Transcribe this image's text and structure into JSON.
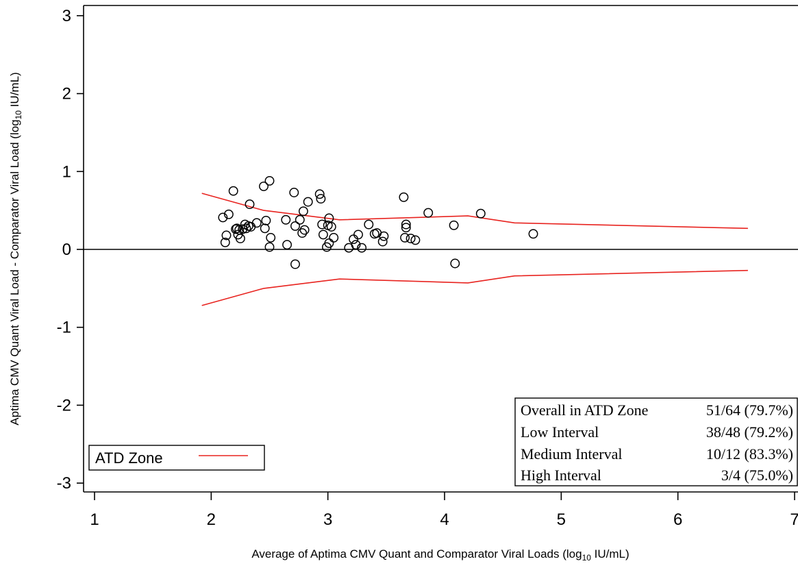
{
  "chart_data": {
    "type": "scatter",
    "xlabel_main": "Average of Aptima CMV Quant and Comparator Viral Loads (log",
    "xlabel_sub": "10",
    "xlabel_end": " IU/mL)",
    "ylabel_main": "Aptima CMV Quant Viral Load - Comparator Viral Load (log",
    "ylabel_sub": "10",
    "ylabel_end": " IU/mL)",
    "xlim": [
      1,
      7
    ],
    "ylim": [
      -3,
      3
    ],
    "x_ticks": [
      "1",
      "2",
      "3",
      "4",
      "5",
      "6",
      "7"
    ],
    "y_ticks": [
      "3",
      "2",
      "1",
      "0",
      "-1",
      "-2",
      "-3"
    ],
    "reference_line_y": 0,
    "colors": {
      "atd_zone": "#e8231f",
      "points": "#000000",
      "axis": "#000000"
    },
    "series": [
      {
        "marker": "open-circle",
        "x": [
          2.1,
          2.12,
          2.13,
          2.15,
          2.19,
          2.21,
          2.22,
          2.23,
          2.24,
          2.25,
          2.27,
          2.29,
          2.3,
          2.32,
          2.33,
          2.34,
          2.39,
          2.45,
          2.46,
          2.47,
          2.5,
          2.5,
          2.51,
          2.64,
          2.65,
          2.71,
          2.72,
          2.72,
          2.76,
          2.78,
          2.79,
          2.8,
          2.83,
          2.93,
          2.94,
          2.95,
          2.96,
          2.99,
          3.0,
          3.01,
          3.01,
          3.03,
          3.05,
          3.18,
          3.22,
          3.24,
          3.26,
          3.29,
          3.35,
          3.4,
          3.42,
          3.47,
          3.48,
          3.65,
          3.66,
          3.67,
          3.67,
          3.71,
          3.75,
          3.86,
          4.08,
          4.09,
          4.31,
          4.76
        ],
        "y": [
          0.41,
          0.09,
          0.18,
          0.45,
          0.75,
          0.26,
          0.27,
          0.19,
          0.25,
          0.14,
          0.26,
          0.32,
          0.27,
          0.3,
          0.58,
          0.29,
          0.34,
          0.81,
          0.27,
          0.37,
          0.88,
          0.03,
          0.15,
          0.38,
          0.06,
          0.73,
          -0.19,
          0.3,
          0.38,
          0.21,
          0.49,
          0.25,
          0.61,
          0.71,
          0.65,
          0.32,
          0.19,
          0.03,
          0.31,
          0.08,
          0.4,
          0.29,
          0.15,
          0.02,
          0.13,
          0.06,
          0.19,
          0.02,
          0.32,
          0.2,
          0.21,
          0.1,
          0.17,
          0.67,
          0.15,
          0.32,
          0.28,
          0.14,
          0.12,
          0.47,
          0.31,
          -0.18,
          0.46,
          0.2
        ]
      },
      {
        "name": "ATD Zone",
        "type": "line",
        "x": [
          1.92,
          2.45,
          3.1,
          4.2,
          4.6,
          6.6
        ],
        "y": [
          0.72,
          0.5,
          0.38,
          0.43,
          0.34,
          0.27
        ]
      },
      {
        "type": "line",
        "x": [
          1.92,
          2.45,
          3.1,
          4.2,
          4.6,
          6.6
        ],
        "y": [
          -0.72,
          -0.5,
          -0.38,
          -0.43,
          -0.34,
          -0.27
        ]
      }
    ],
    "legend": {
      "label": "ATD Zone",
      "placement": "bottom-left"
    },
    "stats_table": {
      "placement": "bottom-right",
      "rows": [
        {
          "label": "Overall in ATD Zone",
          "value": "51/64 (79.7%)"
        },
        {
          "label": "Low Interval",
          "value": "38/48 (79.2%)"
        },
        {
          "label": "Medium Interval",
          "value": "10/12 (83.3%)"
        },
        {
          "label": "High Interval",
          "value": "3/4 (75.0%)"
        }
      ]
    }
  }
}
